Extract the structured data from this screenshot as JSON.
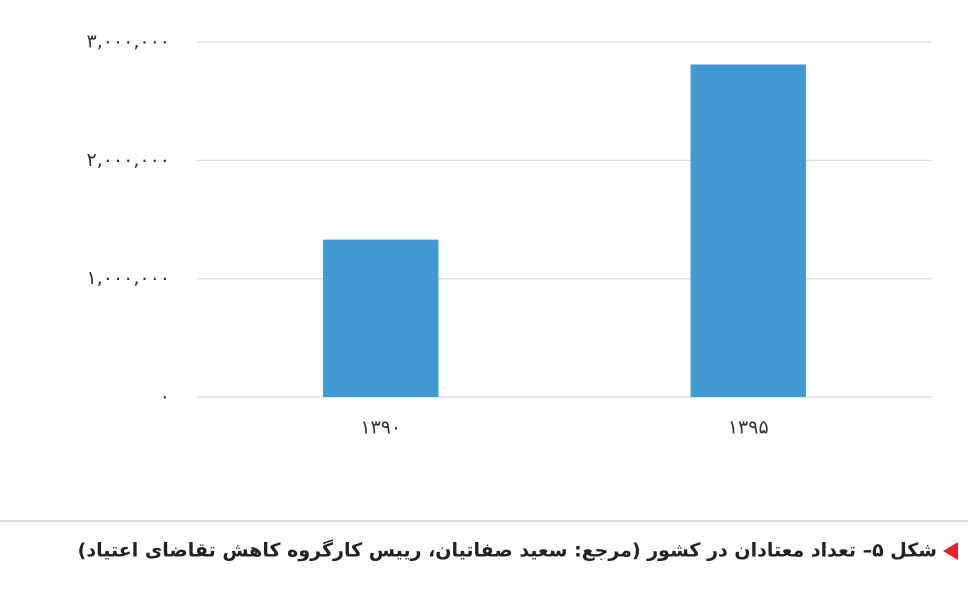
{
  "chart_data": {
    "type": "bar",
    "categories": [
      "۱۳۹۰",
      "۱۳۹۵"
    ],
    "values": [
      1330000,
      2810000
    ],
    "color": "#4299d2",
    "ylim": [
      0,
      3000000
    ],
    "yticks": [
      {
        "value": 0,
        "label": "۰"
      },
      {
        "value": 1000000,
        "label": "۱,۰۰۰,۰۰۰"
      },
      {
        "value": 2000000,
        "label": "۲,۰۰۰,۰۰۰"
      },
      {
        "value": 3000000,
        "label": "۳,۰۰۰,۰۰۰"
      }
    ],
    "grid": true,
    "caption": "شکل ۵– تعداد معتادان در کشور (مرجع: سعید صفاتیان، رییس کارگروه کاهش تقاضای اعتیاد)"
  }
}
